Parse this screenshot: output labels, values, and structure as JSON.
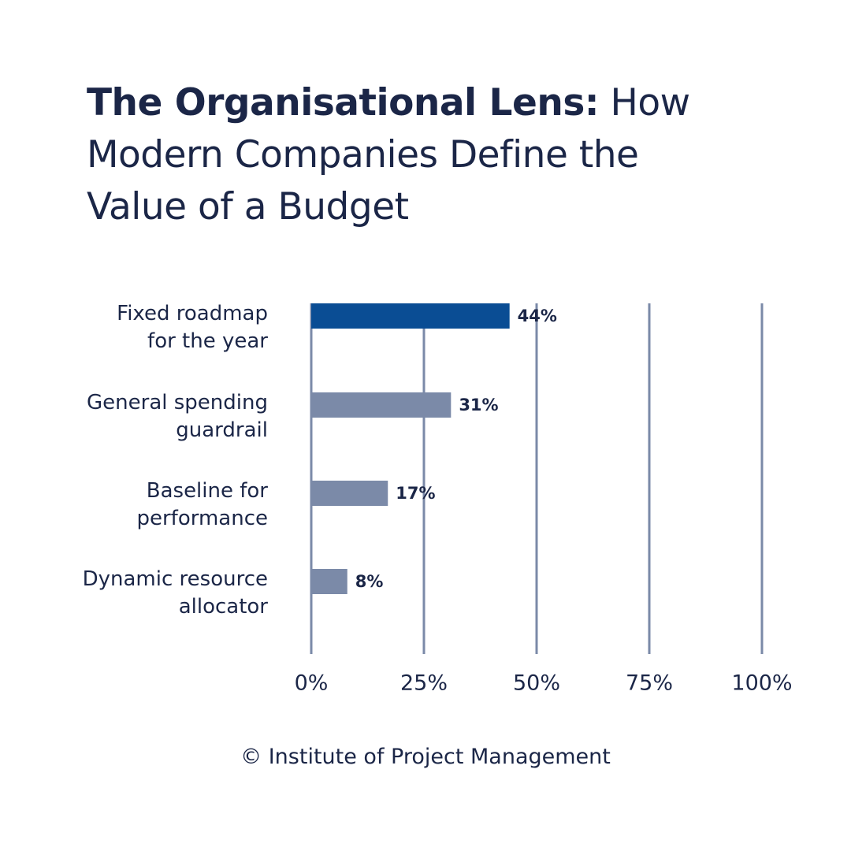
{
  "chart_data": {
    "type": "barh",
    "title": [
      "The Organisational Lens:",
      "How Modern Companies Define the Value of a Budget"
    ],
    "categories": [
      "Fixed roadmap\nfor the year",
      "General spending\nguardrail",
      "Baseline for\nperformance",
      "Dynamic resource\nallocator"
    ],
    "values": [
      44,
      31,
      17,
      8
    ],
    "value_labels": [
      "44%",
      "31%",
      "17%",
      "8%"
    ],
    "colors": [
      "#0a4d94",
      "#7b8aa8",
      "#7b8aa8",
      "#7b8aa8"
    ],
    "xlim": [
      0,
      100
    ],
    "xticks": [
      {
        "value": 0,
        "label": "0%"
      },
      {
        "value": 25,
        "label": "25%"
      },
      {
        "value": 50,
        "label": "50%"
      },
      {
        "value": 75,
        "label": "75%"
      },
      {
        "value": 100,
        "label": "100%"
      }
    ],
    "grid": true,
    "source": "© Institute of Project Management"
  }
}
